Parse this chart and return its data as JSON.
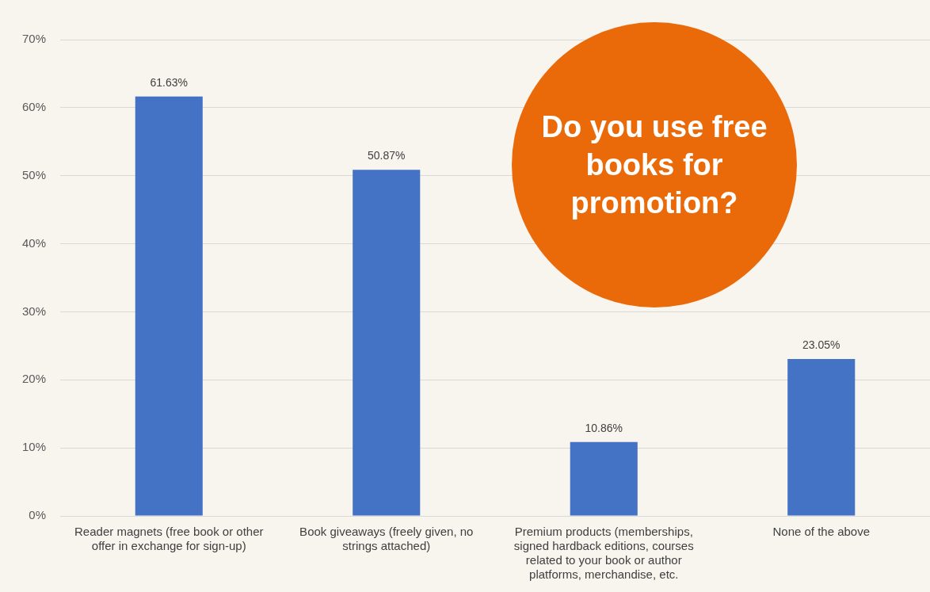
{
  "chart_data": {
    "type": "bar",
    "title": "Do you use free books for promotion?",
    "categories": [
      "Reader magnets (free book or other offer in exchange for sign-up)",
      "Book giveaways (freely given, no strings attached)",
      "Premium products (memberships, signed hardback editions, courses related to your book or author platforms, merchandise, etc.",
      "None of the above"
    ],
    "values": [
      61.63,
      50.87,
      10.86,
      23.05
    ],
    "value_labels": [
      "61.63%",
      "50.87%",
      "10.86%",
      "23.05%"
    ],
    "color": "#4472c4",
    "ylim": [
      0,
      70
    ],
    "yticks": [
      {
        "value": 0,
        "label": "0%"
      },
      {
        "value": 10,
        "label": "10%"
      },
      {
        "value": 20,
        "label": "20%"
      },
      {
        "value": 30,
        "label": "30%"
      },
      {
        "value": 40,
        "label": "40%"
      },
      {
        "value": 50,
        "label": "50%"
      },
      {
        "value": 60,
        "label": "60%"
      },
      {
        "value": 70,
        "label": "70%"
      }
    ],
    "grid": "y"
  }
}
